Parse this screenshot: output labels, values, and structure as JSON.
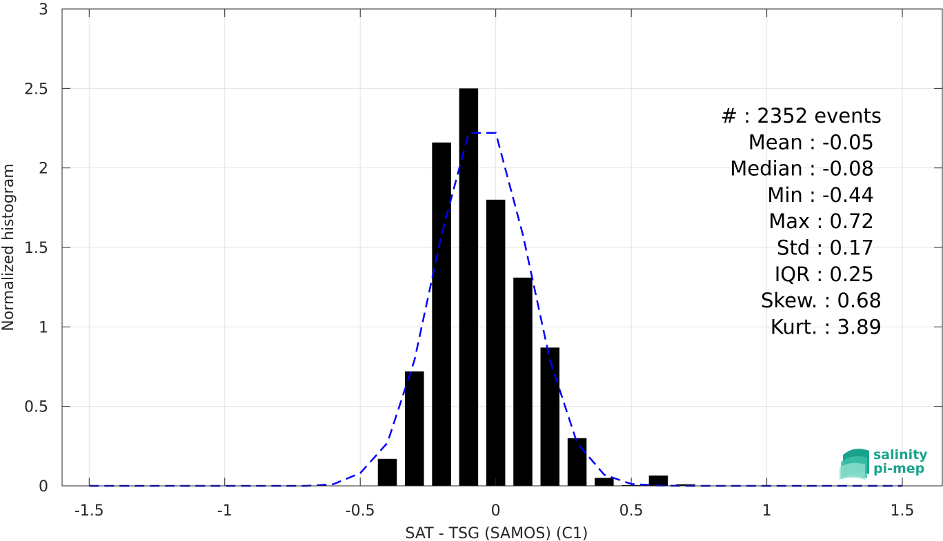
{
  "chart_data": {
    "type": "bar",
    "xlabel": "SAT - TSG (SAMOS) (C1)",
    "ylabel": "Normalized histogram",
    "xlim": [
      -1.6,
      1.65
    ],
    "ylim": [
      0,
      3
    ],
    "xticks": [
      -1.5,
      -1,
      -0.5,
      0,
      0.5,
      1,
      1.5
    ],
    "xtick_labels": [
      "-1.5",
      "-1",
      "-0.5",
      "0",
      "0.5",
      "1",
      "1.5"
    ],
    "yticks": [
      0,
      0.5,
      1,
      1.5,
      2,
      2.5,
      3
    ],
    "ytick_labels": [
      "0",
      "0.5",
      "1",
      "1.5",
      "2",
      "2.5",
      "3"
    ],
    "grid": true,
    "bar_color": "#000000",
    "bars": [
      {
        "x": -0.4,
        "value": 0.17
      },
      {
        "x": -0.3,
        "value": 0.72
      },
      {
        "x": -0.2,
        "value": 2.16
      },
      {
        "x": -0.1,
        "value": 2.5
      },
      {
        "x": 0.0,
        "value": 1.8
      },
      {
        "x": 0.1,
        "value": 1.31
      },
      {
        "x": 0.2,
        "value": 0.87
      },
      {
        "x": 0.3,
        "value": 0.3
      },
      {
        "x": 0.4,
        "value": 0.05
      },
      {
        "x": 0.5,
        "value": 0.005
      },
      {
        "x": 0.6,
        "value": 0.065
      },
      {
        "x": 0.7,
        "value": 0.01
      }
    ],
    "bar_width": 0.07,
    "fit_line": {
      "style": "dashed",
      "color": "#0000ff",
      "x": [
        -1.5,
        -1.4,
        -1.3,
        -1.2,
        -1.1,
        -1.0,
        -0.9,
        -0.8,
        -0.7,
        -0.6,
        -0.5,
        -0.4,
        -0.3,
        -0.2,
        -0.1,
        0.0,
        0.1,
        0.2,
        0.3,
        0.4,
        0.5,
        0.6,
        0.7,
        0.8,
        0.9,
        1.0,
        1.1,
        1.2,
        1.3,
        1.4,
        1.5
      ],
      "y": [
        0,
        0,
        0,
        0,
        0,
        0,
        0,
        0,
        0,
        0.01,
        0.08,
        0.27,
        0.79,
        1.58,
        2.22,
        2.22,
        1.58,
        0.79,
        0.27,
        0.07,
        0.012,
        0.002,
        0,
        0,
        0,
        0,
        0,
        0,
        0,
        0,
        0
      ]
    },
    "stats": [
      {
        "text": "#  : 2352 events",
        "align": "right-long"
      },
      {
        "text": "Mean : -0.05",
        "align": "right"
      },
      {
        "text": "Median : -0.08",
        "align": "right"
      },
      {
        "text": "Min : -0.44",
        "align": "right"
      },
      {
        "text": "Max : 0.72",
        "align": "right"
      },
      {
        "text": "Std : 0.17",
        "align": "right"
      },
      {
        "text": "IQR : 0.25",
        "align": "right"
      },
      {
        "text": "Skew. : 0.68",
        "align": "right-long"
      },
      {
        "text": "Kurt. : 3.89",
        "align": "right-long"
      }
    ]
  },
  "logo": {
    "line1": "salinity",
    "line2": "pi-mep",
    "color": "#1aa38c"
  }
}
